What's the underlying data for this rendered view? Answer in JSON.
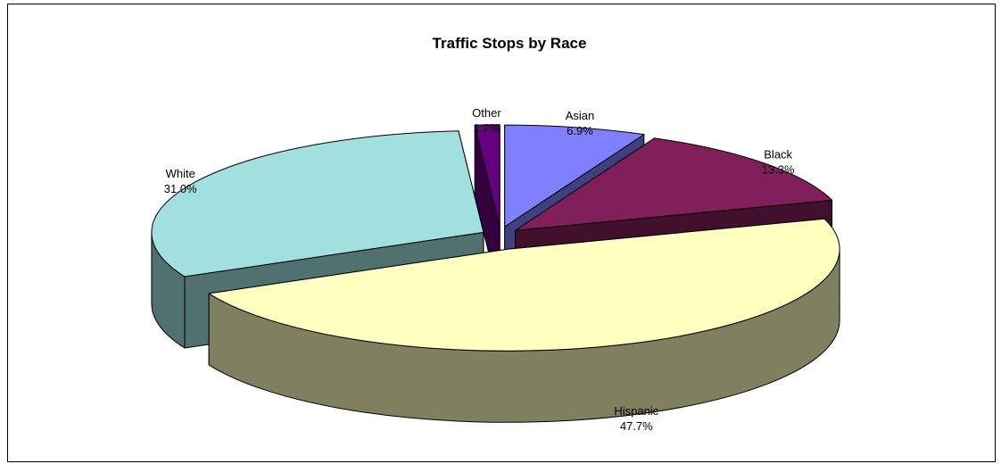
{
  "chart_data": {
    "type": "pie",
    "title": "Traffic Stops by Race",
    "three_d": true,
    "exploded": true,
    "legend": "none",
    "slices": [
      {
        "label": "Asian",
        "value": 6.9,
        "value_label": "6.9%",
        "color": "#8080ff",
        "side_color": "#404080"
      },
      {
        "label": "Black",
        "value": 13.3,
        "value_label": "13.3%",
        "color": "#801f5a",
        "side_color": "#40102d"
      },
      {
        "label": "Hispanic",
        "value": 47.7,
        "value_label": "47.7%",
        "color": "#ffffc0",
        "side_color": "#808060"
      },
      {
        "label": "White",
        "value": 31.0,
        "value_label": "31.0%",
        "color": "#a2e0e0",
        "side_color": "#517070"
      },
      {
        "label": "Other",
        "value": 1.2,
        "value_label": "1.2%",
        "color": "#660080",
        "side_color": "#330040"
      }
    ]
  }
}
